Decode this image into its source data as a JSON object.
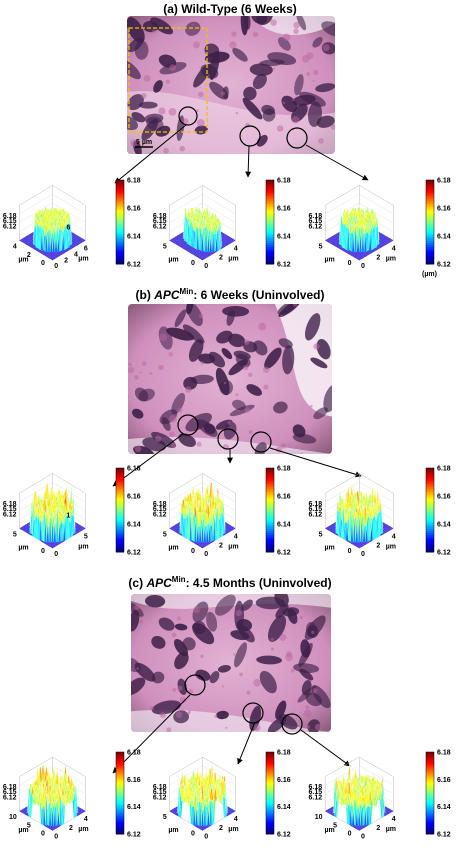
{
  "panels": [
    {
      "label": "(a)",
      "title_plain": "Wild-Type (6 Weeks)",
      "title_italic": "",
      "title_sup": "",
      "title_rest": "",
      "scale_bar": "5 µm",
      "plots": [
        {
          "z_ticks": [
            "6.18",
            "6.15",
            "6.12"
          ],
          "y_ticks": [
            "4",
            "2",
            "0"
          ],
          "x_ticks": [
            "0",
            "2",
            "4",
            "6"
          ],
          "y_ticks_right": "6",
          "y_label": "µm",
          "x_label": "µm",
          "cbar": [
            "6.18",
            "6.16",
            "6.14",
            "6.12"
          ],
          "cbar_unit": ""
        },
        {
          "z_ticks": [
            "6.18",
            "6.15",
            "6.12"
          ],
          "y_ticks": [
            "5",
            "0"
          ],
          "x_ticks": [
            "0",
            "2",
            "4"
          ],
          "y_ticks_right": "",
          "y_label": "µm",
          "x_label": "µm",
          "cbar": [
            "6.18",
            "6.16",
            "6.14",
            "6.12"
          ],
          "cbar_unit": ""
        },
        {
          "z_ticks": [
            "6.18",
            "6.15",
            "6.12"
          ],
          "y_ticks": [
            "5",
            "0"
          ],
          "x_ticks": [
            "0",
            "2",
            "4"
          ],
          "y_ticks_right": "",
          "y_label": "µm",
          "x_label": "µm",
          "cbar": [
            "6.18",
            "6.16",
            "6.14",
            "6.12"
          ],
          "cbar_unit": "(µm)"
        }
      ]
    },
    {
      "label": "(b)",
      "title_plain": "",
      "title_italic": "APC",
      "title_sup": "Min",
      "title_rest": ": 6 Weeks (Uninvolved)",
      "scale_bar": "",
      "plots": [
        {
          "z_ticks": [
            "6.18",
            "6.15",
            "6.12"
          ],
          "y_ticks": [
            "5",
            "0"
          ],
          "x_ticks": [
            "0",
            "5"
          ],
          "y_ticks_right": "1",
          "y_label": "µm",
          "x_label": "µm",
          "cbar": [
            "6.18",
            "6.16",
            "6.14",
            "6.12"
          ],
          "cbar_unit": ""
        },
        {
          "z_ticks": [
            "6.18",
            "6.15",
            "6.12"
          ],
          "y_ticks": [
            "5",
            "0"
          ],
          "x_ticks": [
            "0",
            "2",
            "4"
          ],
          "y_ticks_right": "",
          "y_label": "µm",
          "x_label": "µm",
          "cbar": [
            "6.18",
            "6.16",
            "6.14",
            "6.12"
          ],
          "cbar_unit": ""
        },
        {
          "z_ticks": [
            "6.18",
            "6.15",
            "6.12"
          ],
          "y_ticks": [
            "5",
            "0"
          ],
          "x_ticks": [
            "0",
            "2",
            "4"
          ],
          "y_ticks_right": "",
          "y_label": "µm",
          "x_label": "µm",
          "cbar": [
            "6.18",
            "6.16",
            "6.14",
            "6.12"
          ],
          "cbar_unit": ""
        }
      ]
    },
    {
      "label": "(c)",
      "title_plain": "",
      "title_italic": "APC",
      "title_sup": "Min",
      "title_rest": ": 4.5 Months (Uninvolved)",
      "scale_bar": "",
      "plots": [
        {
          "z_ticks": [
            "6.18",
            "6.15",
            "6.12"
          ],
          "y_ticks": [
            "10",
            "5",
            "0"
          ],
          "x_ticks": [
            "0",
            "2",
            "4"
          ],
          "y_ticks_right": "",
          "y_label": "µm",
          "x_label": "µm",
          "cbar": [
            "6.18",
            "6.16",
            "6.14",
            "6.12"
          ],
          "cbar_unit": ""
        },
        {
          "z_ticks": [
            "6.18",
            "6.15",
            "6.12"
          ],
          "y_ticks": [
            "5",
            "0"
          ],
          "x_ticks": [
            "0",
            "2",
            "4"
          ],
          "y_ticks_right": "",
          "y_label": "µm",
          "x_label": "µm",
          "cbar": [
            "6.18",
            "6.16",
            "6.14",
            "6.12"
          ],
          "cbar_unit": ""
        },
        {
          "z_ticks": [
            "6.18",
            "6.15",
            "6.12"
          ],
          "y_ticks": [
            "10",
            "5",
            "0"
          ],
          "x_ticks": [
            "0",
            "2",
            "4"
          ],
          "y_ticks_right": "",
          "y_label": "µm",
          "x_label": "µm",
          "cbar": [
            "6.18",
            "6.16",
            "6.14",
            "6.12"
          ],
          "cbar_unit": ""
        }
      ]
    }
  ],
  "colors": {
    "tissue_bg": "#d8a2c9",
    "nucleus": "#3e2048",
    "roi_box": "#f2c200",
    "circle": "#000000"
  }
}
